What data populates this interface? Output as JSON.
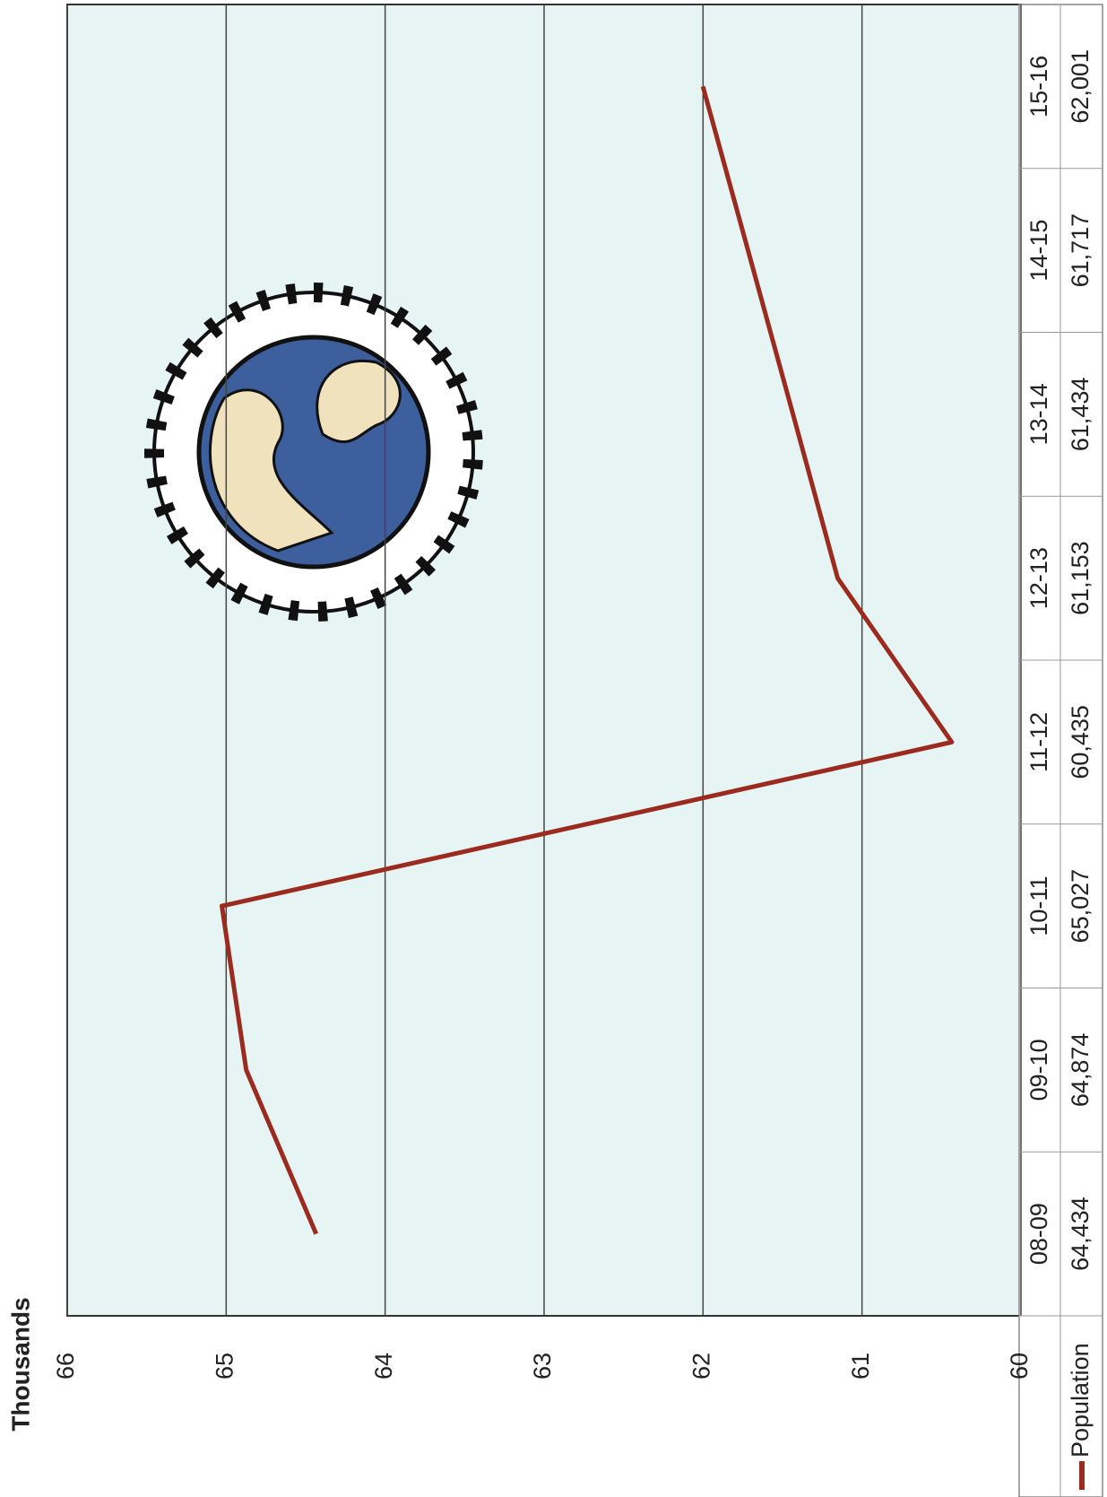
{
  "chart_data": {
    "type": "line",
    "y_label": "Thousands",
    "categories": [
      "08-09",
      "09-10",
      "10-11",
      "11-12",
      "12-13",
      "13-14",
      "14-15",
      "15-16"
    ],
    "series": [
      {
        "name": "Population",
        "color": "#9b2a1f",
        "values": [
          64.434,
          64.874,
          65.027,
          60.435,
          61.153,
          61.434,
          61.717,
          62.001
        ],
        "value_labels": [
          "64,434",
          "64,874",
          "65,027",
          "60,435",
          "61,153",
          "61,434",
          "61,717",
          "62,001"
        ]
      }
    ],
    "ylim": [
      60,
      66
    ],
    "yticks": [
      60,
      61,
      62,
      63,
      64,
      65,
      66
    ],
    "grid": true
  }
}
